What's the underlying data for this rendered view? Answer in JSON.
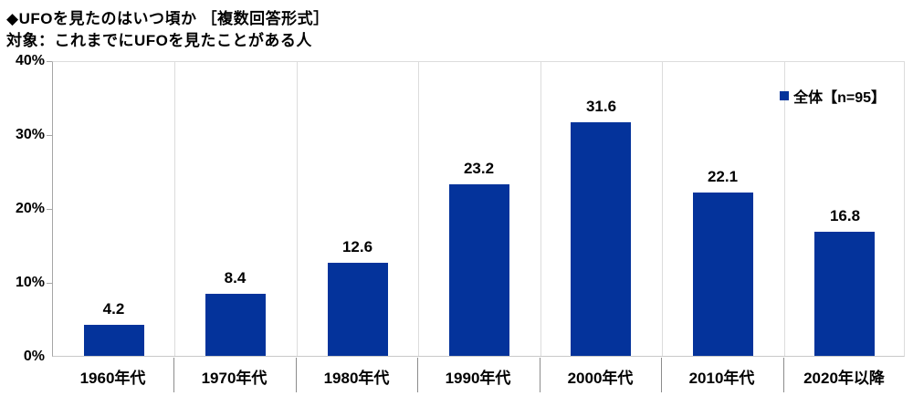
{
  "header": {
    "title": "◆UFOを見たのはいつ頃か ［複数回答形式］",
    "subtitle": "対象：これまでにUFOを見たことがある人"
  },
  "legend": {
    "label": "全体【n=95】",
    "marker_color": "#04339b"
  },
  "chart_data": {
    "type": "bar",
    "title": "UFOを見たのはいつ頃か",
    "categories": [
      "1960年代",
      "1970年代",
      "1980年代",
      "1990年代",
      "2000年代",
      "2010年代",
      "2020年以降"
    ],
    "series": [
      {
        "name": "全体【n=95】",
        "values": [
          4.2,
          8.4,
          12.6,
          23.2,
          31.6,
          22.1,
          16.8
        ]
      }
    ],
    "xlabel": "",
    "ylabel": "",
    "ylim": [
      0,
      40
    ],
    "yticks": [
      {
        "value": 0,
        "label": "0%"
      },
      {
        "value": 10,
        "label": "10%"
      },
      {
        "value": 20,
        "label": "20%"
      },
      {
        "value": 30,
        "label": "30%"
      },
      {
        "value": 40,
        "label": "40%"
      }
    ],
    "bar_color": "#04339b",
    "grid": "vertical category separators",
    "legend_position": "top-right-inside"
  }
}
